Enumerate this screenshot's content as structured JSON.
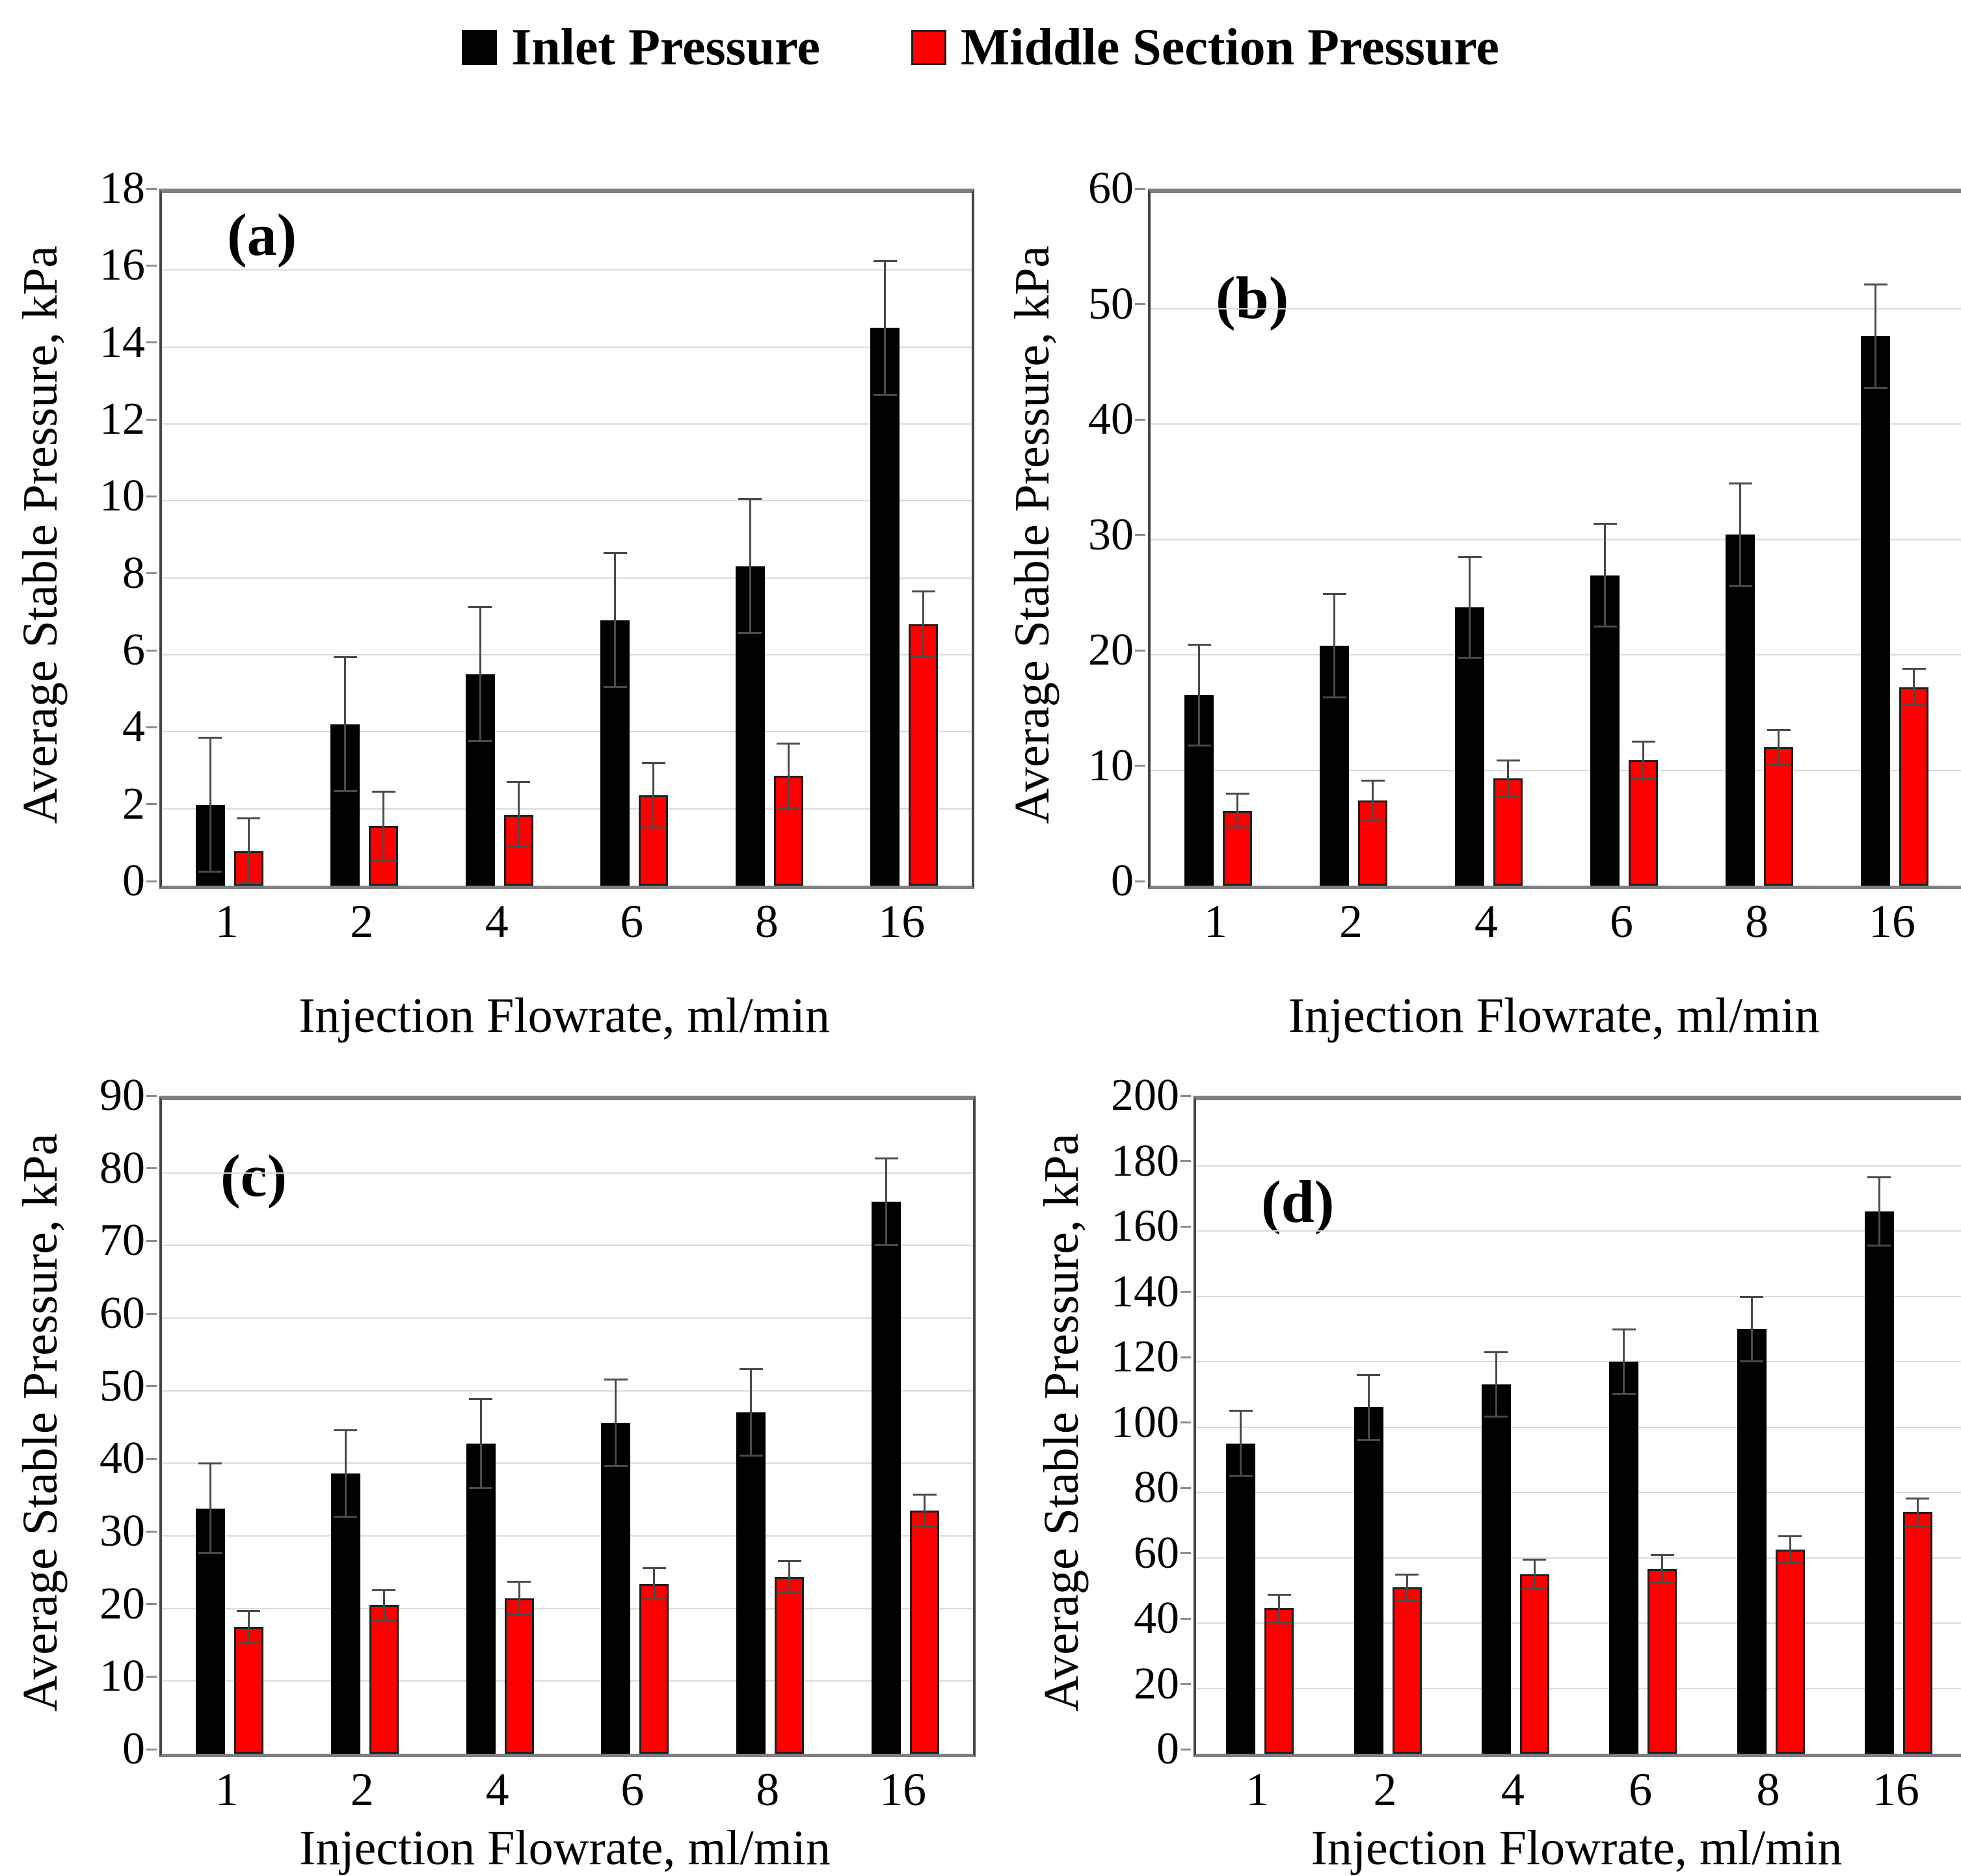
{
  "figure": {
    "legend": [
      {
        "label": "Inlet Pressure",
        "color": "#000000"
      },
      {
        "label": "Middle Section Pressure",
        "color": "#ff0000"
      }
    ]
  },
  "chart_data": [
    {
      "type": "bar",
      "panel_label": "(a)",
      "categories": [
        "1",
        "2",
        "4",
        "6",
        "8",
        "16"
      ],
      "xlabel": "Injection Flowrate, ml/min",
      "ylabel": "Average Stable Pressure, kPa",
      "ylim": [
        0,
        18
      ],
      "ytick_step": 2,
      "yticks": [
        "0",
        "2",
        "4",
        "6",
        "8",
        "10",
        "12",
        "14",
        "16",
        "18"
      ],
      "grid": true,
      "legend_position": "top",
      "series": [
        {
          "name": "Inlet Pressure",
          "color": "#000000",
          "values": [
            2.1,
            4.2,
            5.5,
            6.9,
            8.3,
            14.5
          ],
          "errors": [
            1.75,
            1.75,
            1.75,
            1.75,
            1.75,
            1.75
          ]
        },
        {
          "name": "Middle Section Pressure",
          "color": "#ff0000",
          "values": [
            0.9,
            1.55,
            1.85,
            2.35,
            2.85,
            6.8
          ],
          "errors": [
            0.85,
            0.9,
            0.85,
            0.85,
            0.85,
            0.85
          ]
        }
      ]
    },
    {
      "type": "bar",
      "panel_label": "(b)",
      "categories": [
        "1",
        "2",
        "4",
        "6",
        "8",
        "16"
      ],
      "xlabel": "Injection Flowrate, ml/min",
      "ylabel": "Average Stable Pressure, kPa",
      "ylim": [
        0,
        60
      ],
      "ytick_step": 10,
      "yticks": [
        "0",
        "10",
        "20",
        "30",
        "40",
        "50",
        "60"
      ],
      "grid": true,
      "legend_position": "top",
      "series": [
        {
          "name": "Inlet Pressure",
          "color": "#000000",
          "values": [
            16.5,
            20.8,
            24.1,
            26.9,
            30.4,
            47.6
          ],
          "errors": [
            4.4,
            4.5,
            4.4,
            4.5,
            4.5,
            4.5
          ]
        },
        {
          "name": "Middle Section Pressure",
          "color": "#ff0000",
          "values": [
            6.5,
            7.4,
            9.3,
            10.9,
            12.0,
            17.2
          ],
          "errors": [
            1.5,
            1.7,
            1.6,
            1.6,
            1.5,
            1.6
          ]
        }
      ]
    },
    {
      "type": "bar",
      "panel_label": "(c)",
      "categories": [
        "1",
        "2",
        "4",
        "6",
        "8",
        "16"
      ],
      "xlabel": "Injection Flowrate, ml/min",
      "ylabel": "Average Stable Pressure, kPa",
      "ylim": [
        0,
        90
      ],
      "ytick_step": 10,
      "yticks": [
        "0",
        "10",
        "20",
        "30",
        "40",
        "50",
        "60",
        "70",
        "80",
        "90"
      ],
      "grid": true,
      "legend_position": "top",
      "series": [
        {
          "name": "Inlet Pressure",
          "color": "#000000",
          "values": [
            33.8,
            38.6,
            42.7,
            45.6,
            47.0,
            76.0
          ],
          "errors": [
            6.2,
            6.0,
            6.2,
            6.0,
            6.0,
            6.0
          ]
        },
        {
          "name": "Middle Section Pressure",
          "color": "#ff0000",
          "values": [
            17.5,
            20.5,
            21.4,
            23.4,
            24.4,
            33.5
          ],
          "errors": [
            2.2,
            2.1,
            2.3,
            2.2,
            2.2,
            2.2
          ]
        }
      ]
    },
    {
      "type": "bar",
      "panel_label": "(d)",
      "categories": [
        "1",
        "2",
        "4",
        "6",
        "8",
        "16"
      ],
      "xlabel": "Injection Flowrate, ml/min",
      "ylabel": "Average Stable Pressure, kPa",
      "ylim": [
        0,
        200
      ],
      "ytick_step": 20,
      "yticks": [
        "0",
        "20",
        "40",
        "60",
        "80",
        "100",
        "120",
        "140",
        "160",
        "180",
        "200"
      ],
      "grid": true,
      "legend_position": "top",
      "series": [
        {
          "name": "Inlet Pressure",
          "color": "#000000",
          "values": [
            95,
            106,
            113,
            120,
            130,
            166
          ],
          "errors": [
            10,
            10,
            10,
            10,
            10,
            10.5
          ]
        },
        {
          "name": "Middle Section Pressure",
          "color": "#ff0000",
          "values": [
            44.5,
            51,
            55,
            56.5,
            62.5,
            74
          ],
          "errors": [
            4.3,
            4.0,
            4.5,
            4.3,
            4.2,
            4.3
          ]
        }
      ]
    }
  ]
}
